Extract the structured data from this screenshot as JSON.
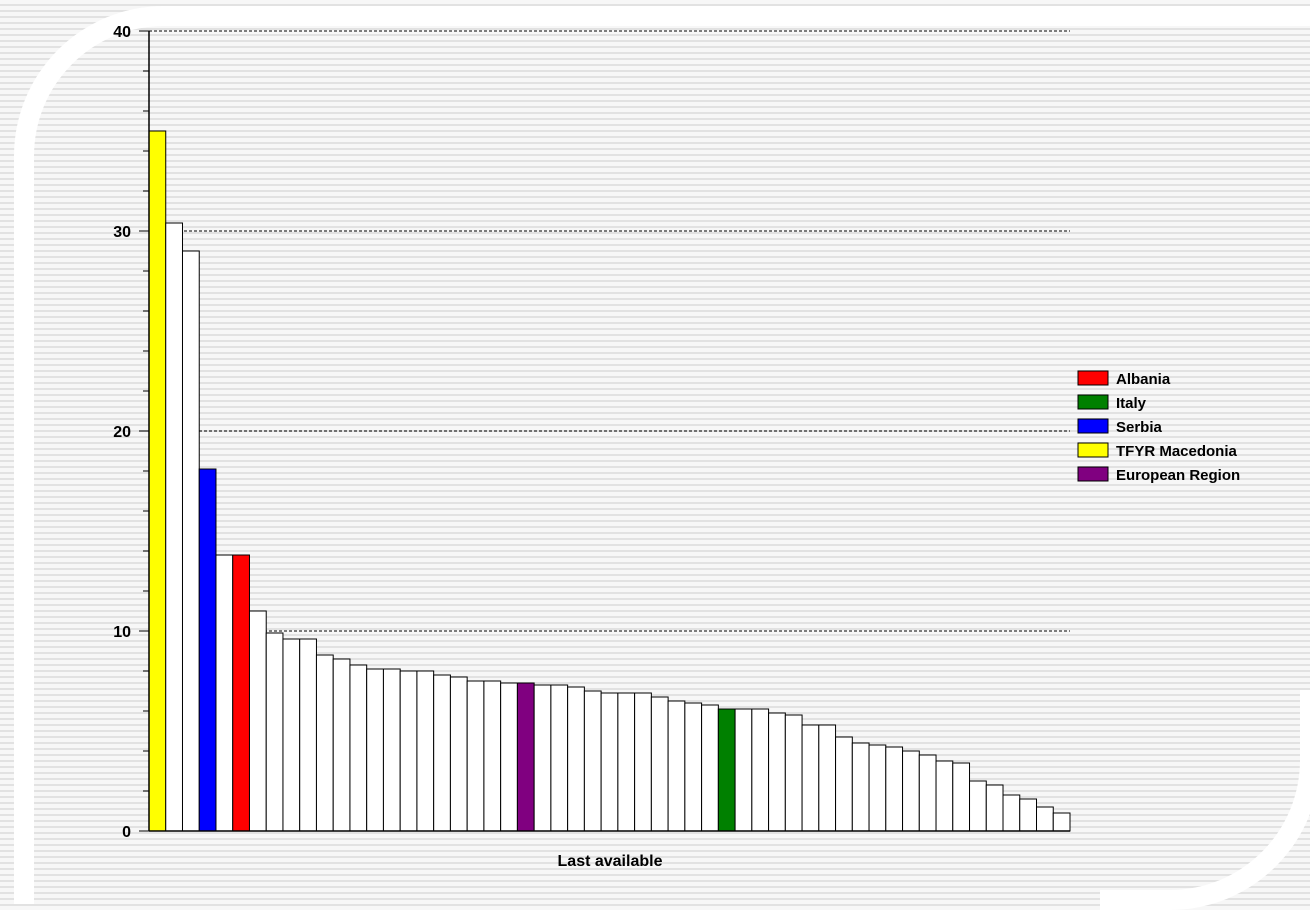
{
  "chart_data": {
    "type": "bar",
    "xlabel": "Last available",
    "ylabel": "",
    "ylim": [
      0,
      40
    ],
    "yticks": [
      "0",
      "10",
      "20",
      "30",
      "40"
    ],
    "grid": "dashed horizontal at major ticks",
    "legend_position": "right",
    "legend": [
      {
        "label": "Albania",
        "color": "#ff0000"
      },
      {
        "label": "Italy",
        "color": "#008000"
      },
      {
        "label": "Serbia",
        "color": "#0000ff"
      },
      {
        "label": "TFYR Macedonia",
        "color": "#ffff00"
      },
      {
        "label": "European Region",
        "color": "#800080"
      }
    ],
    "highlights": [
      {
        "index": 0,
        "color": "#ffff00"
      },
      {
        "index": 3,
        "color": "#0000ff"
      },
      {
        "index": 5,
        "color": "#ff0000"
      },
      {
        "index": 22,
        "color": "#800080"
      },
      {
        "index": 34,
        "color": "#008000"
      }
    ],
    "default_color": "#ffffff",
    "values": [
      35.0,
      30.4,
      29.0,
      18.1,
      13.8,
      13.8,
      11.0,
      9.9,
      9.6,
      9.6,
      8.8,
      8.6,
      8.3,
      8.1,
      8.1,
      8.0,
      8.0,
      7.8,
      7.7,
      7.5,
      7.5,
      7.4,
      7.4,
      7.3,
      7.3,
      7.2,
      7.0,
      6.9,
      6.9,
      6.9,
      6.7,
      6.5,
      6.4,
      6.3,
      6.1,
      6.1,
      6.1,
      5.9,
      5.8,
      5.3,
      5.3,
      4.7,
      4.4,
      4.3,
      4.2,
      4.0,
      3.8,
      3.5,
      3.4,
      2.5,
      2.3,
      1.8,
      1.6,
      1.2,
      0.9
    ]
  }
}
